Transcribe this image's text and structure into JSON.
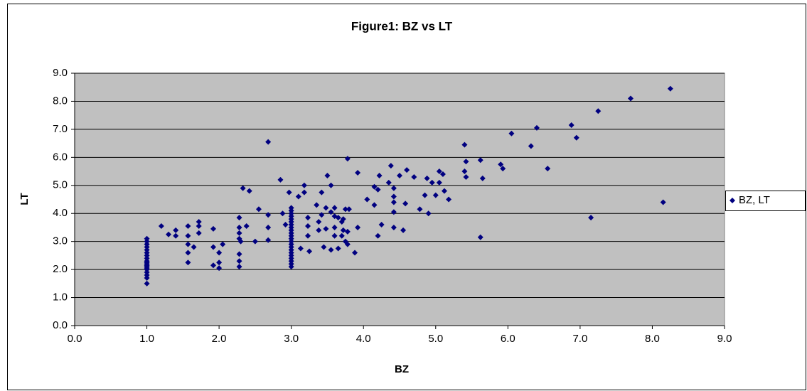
{
  "chart_data": {
    "type": "scatter",
    "title": "Figure1: BZ vs LT",
    "xlabel": "BZ",
    "ylabel": "LT",
    "xlim": [
      0,
      9
    ],
    "ylim": [
      0,
      9
    ],
    "xticks": [
      {
        "value": 0,
        "label": "0.0"
      },
      {
        "value": 1,
        "label": "1.0"
      },
      {
        "value": 2,
        "label": "2.0"
      },
      {
        "value": 3,
        "label": "3.0"
      },
      {
        "value": 4,
        "label": "4.0"
      },
      {
        "value": 5,
        "label": "5.0"
      },
      {
        "value": 6,
        "label": "6.0"
      },
      {
        "value": 7,
        "label": "7.0"
      },
      {
        "value": 8,
        "label": "8.0"
      },
      {
        "value": 9,
        "label": "9.0"
      }
    ],
    "yticks": [
      {
        "value": 0,
        "label": "0.0"
      },
      {
        "value": 1,
        "label": "1.0"
      },
      {
        "value": 2,
        "label": "2.0"
      },
      {
        "value": 3,
        "label": "3.0"
      },
      {
        "value": 4,
        "label": "4.0"
      },
      {
        "value": 5,
        "label": "5.0"
      },
      {
        "value": 6,
        "label": "6.0"
      },
      {
        "value": 7,
        "label": "7.0"
      },
      {
        "value": 8,
        "label": "8.0"
      },
      {
        "value": 9,
        "label": "9.0"
      }
    ],
    "grid": true,
    "legend": "right",
    "series": [
      {
        "name": "BZ, LT",
        "color": "#000080",
        "x": [
          1.0,
          1.0,
          1.0,
          1.0,
          1.0,
          1.0,
          1.0,
          1.0,
          1.0,
          1.0,
          1.0,
          1.0,
          1.0,
          1.0,
          1.0,
          1.0,
          1.0,
          1.0,
          1.0,
          1.2,
          1.3,
          1.4,
          1.4,
          1.57,
          1.57,
          1.57,
          1.57,
          1.57,
          1.65,
          1.72,
          1.72,
          1.72,
          1.92,
          1.92,
          1.92,
          2.0,
          2.0,
          2.0,
          2.05,
          2.28,
          2.28,
          2.28,
          2.28,
          2.28,
          2.28,
          2.28,
          2.3,
          2.33,
          2.38,
          2.42,
          2.5,
          2.55,
          2.68,
          2.68,
          2.68,
          2.68,
          2.85,
          2.88,
          2.92,
          3.0,
          3.0,
          3.0,
          3.0,
          3.0,
          3.0,
          3.0,
          3.0,
          3.0,
          3.0,
          3.0,
          3.0,
          3.0,
          3.0,
          3.0,
          3.0,
          3.0,
          3.0,
          3.0,
          3.0,
          3.0,
          3.0,
          2.97,
          3.1,
          3.13,
          3.18,
          3.18,
          3.23,
          3.23,
          3.23,
          3.25,
          3.35,
          3.38,
          3.38,
          3.42,
          3.42,
          3.45,
          3.48,
          3.48,
          3.5,
          3.55,
          3.55,
          3.55,
          3.6,
          3.6,
          3.6,
          3.6,
          3.65,
          3.65,
          3.7,
          3.7,
          3.72,
          3.72,
          3.75,
          3.75,
          3.78,
          3.78,
          3.78,
          3.8,
          3.88,
          3.92,
          3.92,
          4.05,
          4.15,
          4.15,
          4.2,
          4.2,
          4.22,
          4.25,
          4.35,
          4.38,
          4.42,
          4.42,
          4.42,
          4.42,
          4.42,
          4.5,
          4.55,
          4.58,
          4.6,
          4.7,
          4.78,
          4.85,
          4.88,
          4.9,
          4.95,
          5.0,
          5.05,
          5.05,
          5.1,
          5.12,
          5.18,
          5.4,
          5.4,
          5.42,
          5.42,
          5.62,
          5.62,
          5.65,
          5.9,
          5.93,
          6.05,
          6.32,
          6.4,
          6.55,
          6.88,
          6.95,
          7.15,
          7.25,
          7.7,
          8.15,
          8.25
        ],
        "values": [
          1.5,
          1.7,
          1.8,
          1.9,
          2.0,
          2.05,
          2.1,
          2.15,
          2.2,
          2.25,
          2.3,
          2.4,
          2.5,
          2.6,
          2.7,
          2.8,
          2.9,
          3.0,
          3.1,
          3.55,
          3.25,
          3.4,
          3.2,
          3.55,
          3.2,
          2.9,
          2.6,
          2.25,
          2.8,
          3.7,
          3.55,
          3.3,
          3.45,
          2.8,
          2.15,
          2.6,
          2.25,
          2.05,
          2.9,
          3.85,
          3.5,
          3.3,
          3.1,
          2.55,
          2.3,
          2.1,
          3.0,
          4.9,
          3.55,
          4.8,
          3.0,
          4.15,
          6.55,
          3.95,
          3.5,
          3.05,
          5.2,
          4.0,
          3.6,
          2.1,
          2.2,
          2.3,
          2.4,
          2.5,
          2.6,
          2.7,
          2.8,
          2.9,
          3.0,
          3.1,
          3.2,
          3.3,
          3.4,
          3.5,
          3.6,
          3.7,
          3.8,
          3.9,
          4.0,
          4.1,
          4.2,
          4.75,
          4.6,
          2.75,
          5.0,
          4.75,
          3.85,
          3.55,
          3.2,
          2.65,
          4.3,
          3.7,
          3.4,
          4.75,
          3.95,
          2.8,
          3.45,
          4.2,
          5.35,
          5.0,
          4.05,
          2.7,
          4.2,
          3.9,
          3.5,
          3.2,
          3.85,
          2.75,
          3.7,
          3.2,
          3.4,
          3.8,
          4.15,
          3.0,
          5.95,
          3.35,
          2.9,
          4.15,
          2.6,
          5.45,
          3.5,
          4.5,
          4.3,
          4.95,
          4.85,
          3.2,
          5.35,
          3.6,
          5.1,
          5.7,
          4.9,
          4.6,
          4.4,
          4.05,
          3.5,
          5.35,
          3.4,
          4.35,
          5.55,
          5.3,
          4.15,
          4.65,
          5.25,
          4.0,
          5.1,
          4.65,
          5.1,
          5.5,
          5.4,
          4.8,
          4.5,
          6.45,
          5.5,
          5.85,
          5.3,
          5.9,
          3.15,
          5.25,
          5.75,
          5.6,
          6.85,
          6.4,
          7.05,
          5.6,
          7.15,
          6.7,
          3.85,
          7.65,
          8.1,
          4.4,
          8.45
        ]
      }
    ]
  }
}
